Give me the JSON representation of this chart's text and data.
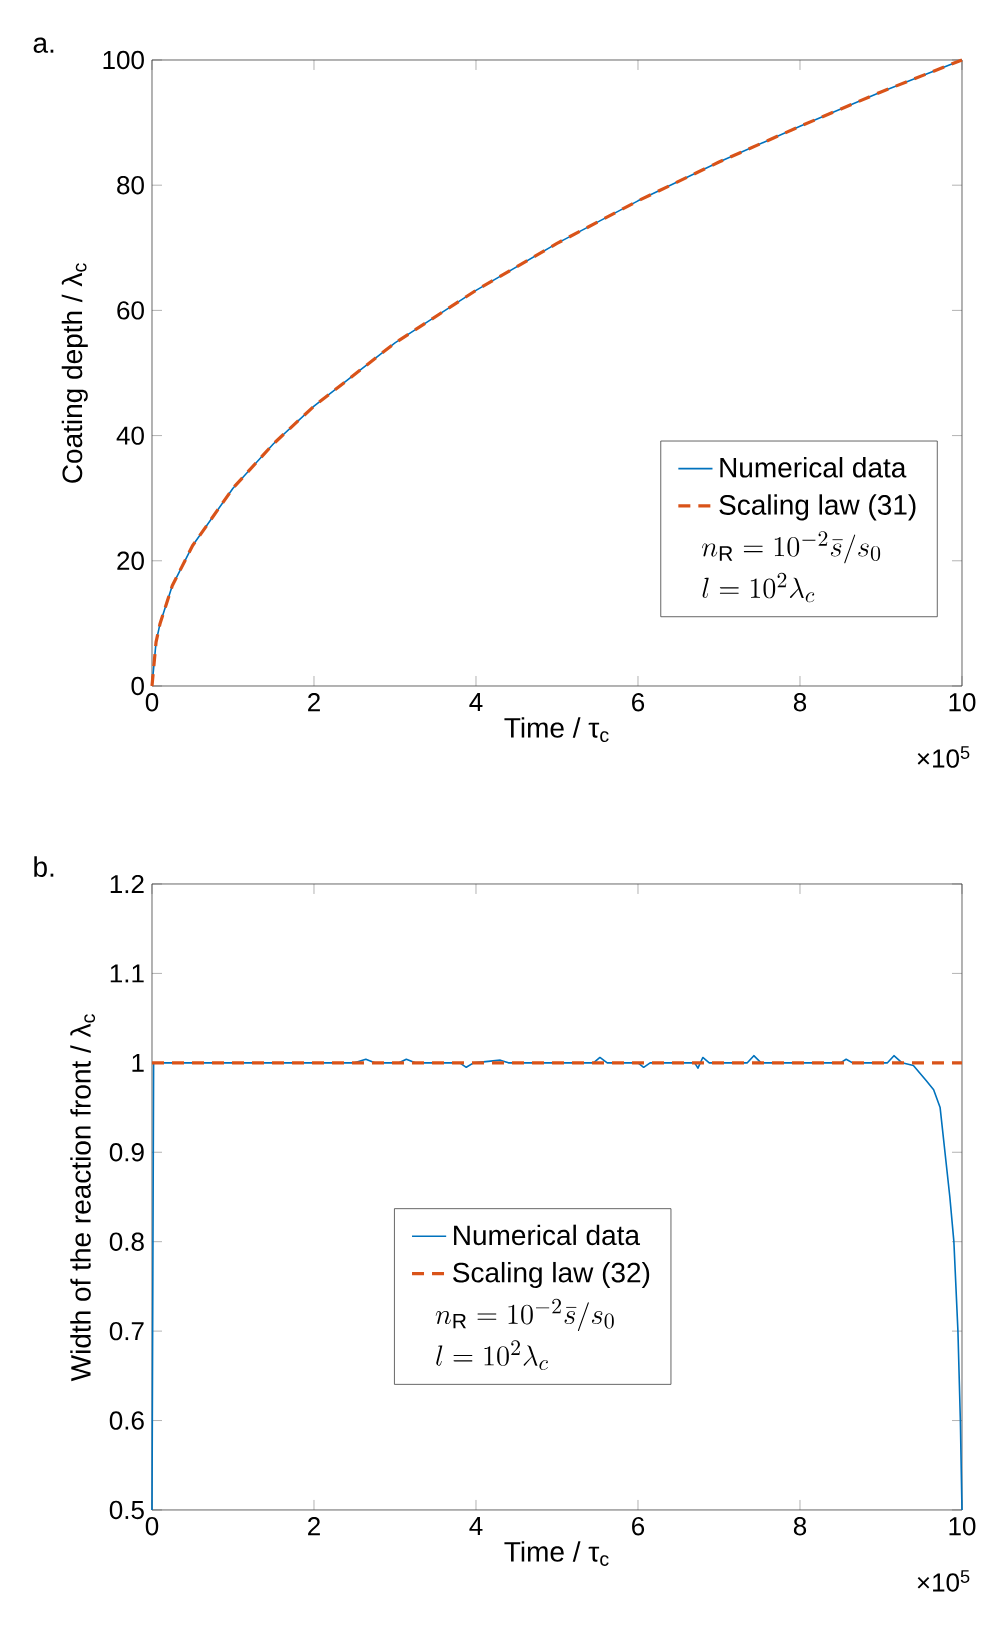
{
  "chart_data": [
    {
      "type": "line",
      "title": "a.",
      "xlabel": "Time / τ$_{c}$",
      "ylabel": "Coating depth / λ$_{c}$",
      "xlim": [
        0,
        10
      ],
      "ylim": [
        0,
        100
      ],
      "xticks": [
        0,
        2,
        4,
        6,
        8,
        10
      ],
      "yticks": [
        0,
        20,
        40,
        60,
        80,
        100
      ],
      "legend": "bottom right",
      "annotations": [
        "×10$^{5}$",
        "n_{\\mathrm{R}} = 10^{-2}\\bar{s}/s_0",
        "l = 10^2\\lambda_c"
      ],
      "series": [
        {
          "name": "Numerical data",
          "color": "#0072bd",
          "line_style": "solid",
          "x": [
            0,
            0.05,
            0.1,
            0.25,
            0.5,
            1,
            1.5,
            2,
            3,
            4,
            5,
            6,
            7,
            8,
            9,
            10
          ],
          "values": [
            0,
            7,
            10,
            16,
            22.4,
            31.6,
            38.7,
            44.7,
            54.8,
            63.2,
            70.7,
            77.5,
            83.7,
            89.4,
            94.9,
            100
          ]
        },
        {
          "name": "Scaling law (31)",
          "color": "#d95319",
          "line_style": "dashed",
          "x": [
            0,
            0.05,
            0.1,
            0.25,
            0.5,
            1,
            1.5,
            2,
            3,
            4,
            5,
            6,
            7,
            8,
            9,
            10
          ],
          "values": [
            0,
            7,
            10,
            16,
            22.4,
            31.6,
            38.7,
            44.7,
            54.8,
            63.2,
            70.7,
            77.5,
            83.7,
            89.4,
            94.9,
            100
          ]
        }
      ]
    },
    {
      "type": "line",
      "title": "b.",
      "xlabel": "Time / τ$_{c}$",
      "ylabel": "Width of the reaction front / λ$_{c}$",
      "xlim": [
        0,
        10
      ],
      "ylim": [
        0.5,
        1.2
      ],
      "xticks": [
        0,
        2,
        4,
        6,
        8,
        10
      ],
      "yticks": [
        0.5,
        0.6,
        0.7,
        0.8,
        0.9,
        1,
        1.1,
        1.2
      ],
      "legend": "bottom",
      "annotations": [
        "×10$^{5}$",
        "n_{\\mathrm{R}} = 10^{-2}\\bar{s}/s_0",
        "l = 10^2\\lambda_c"
      ],
      "series": [
        {
          "name": "Numerical data",
          "color": "#0072bd",
          "line_style": "solid",
          "x": [
            0,
            0.02,
            1,
            2.5,
            2.64,
            2.75,
            3.05,
            3.14,
            3.25,
            3.8,
            3.88,
            3.97,
            4.3,
            4.4,
            5.45,
            5.53,
            5.62,
            6,
            6.07,
            6.15,
            6.7,
            6.74,
            6.8,
            6.88,
            7.35,
            7.43,
            7.52,
            8.5,
            8.57,
            8.65,
            9.08,
            9.16,
            9.26,
            9.4,
            9.56,
            9.65,
            9.73,
            9.85,
            9.9,
            9.95,
            9.98,
            10
          ],
          "values": [
            0.5,
            1,
            1,
            1,
            1.004,
            1,
            1,
            1.004,
            1,
            1,
            0.995,
            1,
            1.003,
            1,
            1,
            1.006,
            1,
            1,
            0.995,
            1,
            1,
            0.994,
            1.006,
            1,
            1,
            1.008,
            1,
            1,
            1.004,
            1,
            1,
            1.008,
            1,
            0.997,
            0.98,
            0.97,
            0.95,
            0.85,
            0.8,
            0.7,
            0.6,
            0.5
          ]
        },
        {
          "name": "Scaling law (32)",
          "color": "#d95319",
          "line_style": "dashed",
          "x": [
            0,
            10
          ],
          "values": [
            1,
            1
          ]
        }
      ]
    }
  ]
}
